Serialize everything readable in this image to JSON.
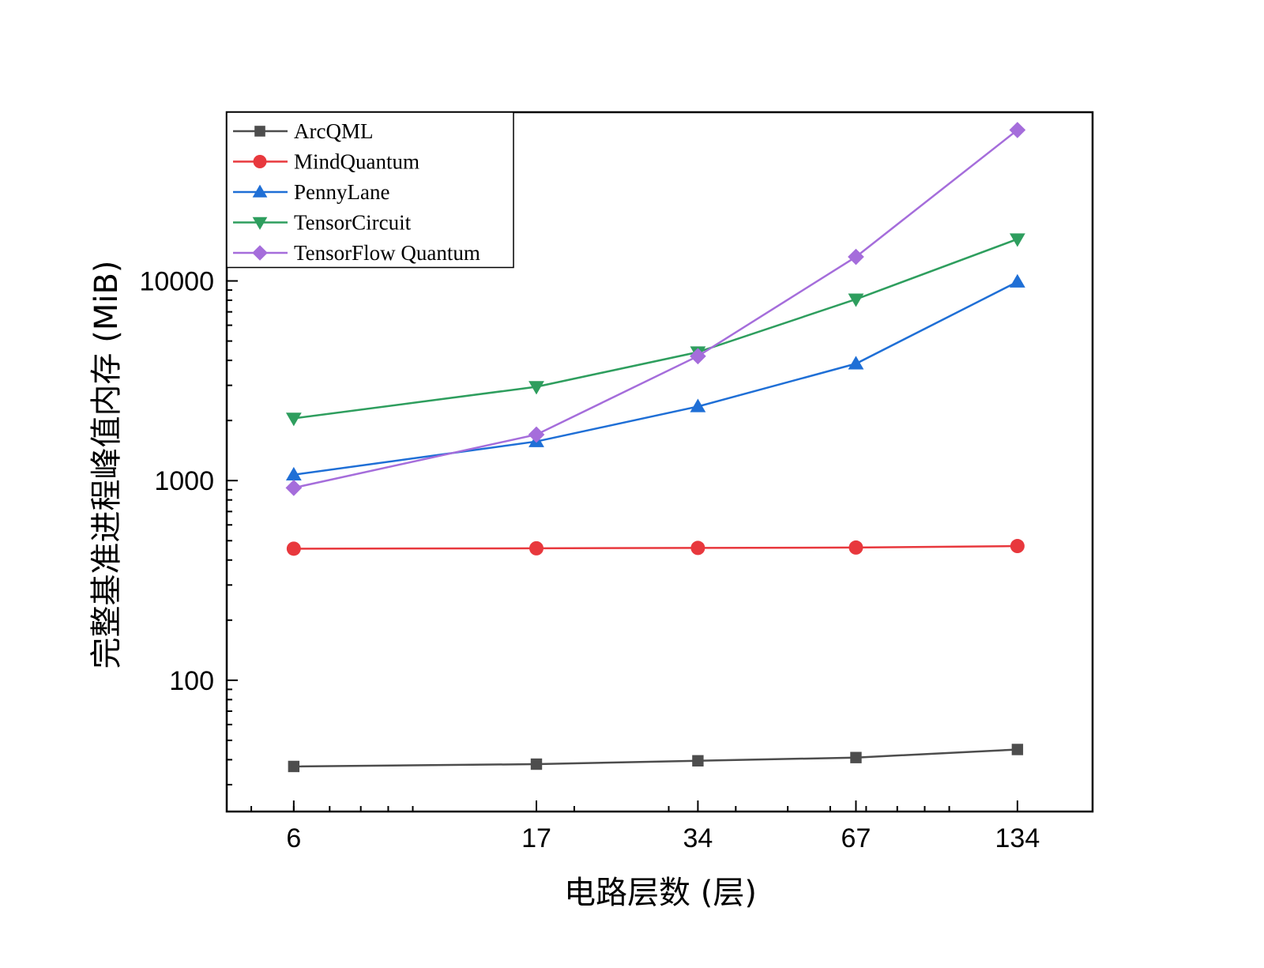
{
  "chart_data": {
    "type": "line",
    "title": "",
    "xlabel": "电路层数 (层)",
    "ylabel": "完整基准进程峰值内存 (MiB)",
    "x_scale": "log",
    "y_scale": "log",
    "x": [
      6,
      17,
      34,
      67,
      134
    ],
    "x_tick_labels": [
      "6",
      "17",
      "34",
      "67",
      "134"
    ],
    "xlim": [
      4.5,
      185
    ],
    "ylim": [
      22,
      70000
    ],
    "y_ticks": [
      100,
      1000,
      10000
    ],
    "y_tick_labels": [
      "100",
      "1000",
      "10000"
    ],
    "grid": false,
    "legend_position": "top-left",
    "series": [
      {
        "name": "ArcQML",
        "color": "#4d4d4d",
        "marker": "square",
        "values": [
          37,
          38,
          39.5,
          41,
          45
        ]
      },
      {
        "name": "MindQuantum",
        "color": "#e8383d",
        "marker": "circle",
        "values": [
          456,
          458,
          460,
          462,
          470
        ]
      },
      {
        "name": "PennyLane",
        "color": "#1f6fd6",
        "marker": "triangle-up",
        "values": [
          1070,
          1570,
          2350,
          3850,
          9900
        ]
      },
      {
        "name": "TensorCircuit",
        "color": "#2e9e5e",
        "marker": "triangle-down",
        "values": [
          2050,
          2950,
          4400,
          8100,
          16200
        ]
      },
      {
        "name": "TensorFlow Quantum",
        "color": "#a56ddb",
        "marker": "diamond",
        "values": [
          920,
          1700,
          4200,
          13200,
          57000
        ]
      }
    ]
  }
}
